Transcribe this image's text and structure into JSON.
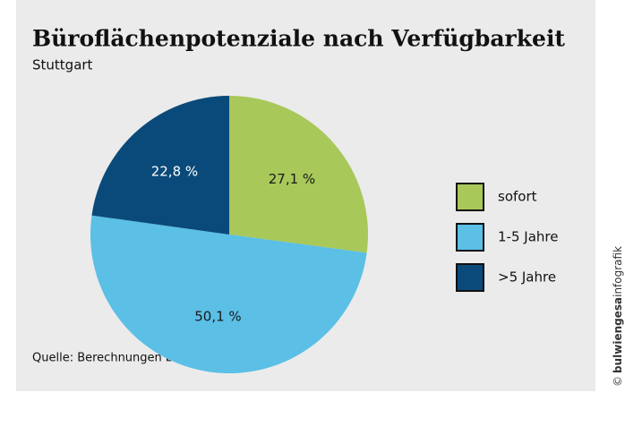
{
  "chart_data": {
    "type": "pie",
    "title": "Büroflächenpotenziale nach Verfügbarkeit",
    "subtitle": "Stuttgart",
    "categories": [
      "sofort",
      "1-5 Jahre",
      ">5 Jahre"
    ],
    "values": [
      27.1,
      50.1,
      22.8
    ],
    "value_labels": [
      "27,1 %",
      "50,1 %",
      "22,8 %"
    ],
    "colors": [
      "#a8c85a",
      "#5bbfe6",
      "#0a4a7a"
    ],
    "label_colors": [
      "#1a1a1a",
      "#1a1a1a",
      "#ffffff"
    ],
    "source": "Quelle: Berechnungen bulwiengesa AG",
    "credit": {
      "symbol": "©",
      "brand": "bulwiengesa",
      "suffix": "infografik"
    }
  }
}
